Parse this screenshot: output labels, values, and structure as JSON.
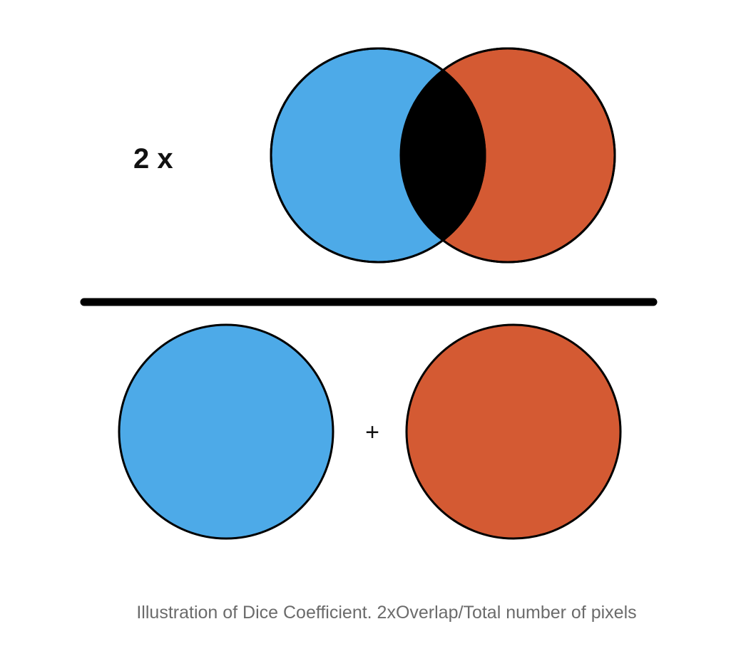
{
  "numerator": {
    "multiplier_text": "2 x",
    "set_a_color": "#4DAAE8",
    "set_b_color": "#D45A33",
    "overlap_color": "#000000"
  },
  "denominator": {
    "plus_text": "+",
    "set_a_color": "#4DAAE8",
    "set_b_color": "#D45A33"
  },
  "fraction_bar_color": "#000000",
  "caption": "Illustration of Dice Coefficient. 2xOverlap/Total number of pixels"
}
